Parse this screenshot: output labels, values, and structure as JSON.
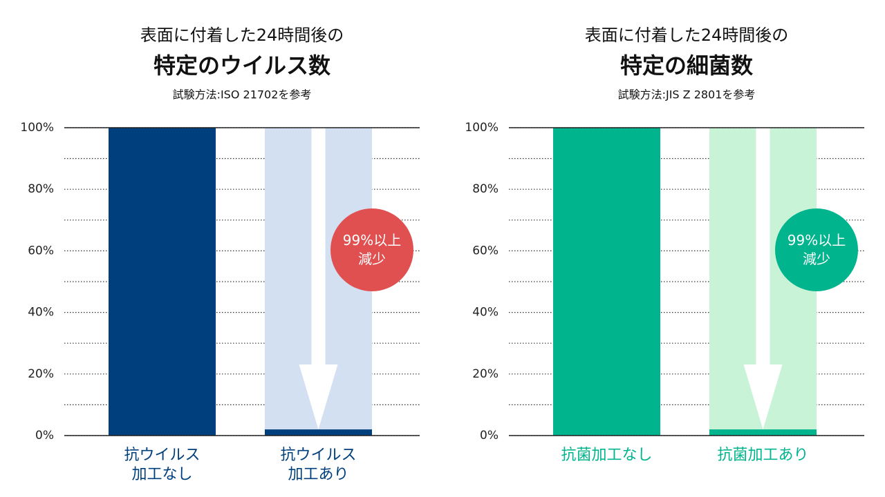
{
  "chart_data": [
    {
      "type": "bar",
      "title": "表面に付着した24時間後の",
      "subtitle": "特定のウイルス数",
      "note": "試験方法:ISO 21702を参考",
      "categories": [
        "抗ウイルス加工なし",
        "抗ウイルス加工あり"
      ],
      "values": [
        100,
        2
      ],
      "colors": [
        "#003f7d",
        "#003f7d"
      ],
      "background_color": "#d3e0f2",
      "label_color": "#003f7d",
      "ylim": [
        0,
        100
      ],
      "yticks": [
        {
          "value": 0,
          "label": "0%"
        },
        {
          "value": 20,
          "label": "20%"
        },
        {
          "value": 40,
          "label": "40%"
        },
        {
          "value": 60,
          "label": "60%"
        },
        {
          "value": 80,
          "label": "80%"
        },
        {
          "value": 100,
          "label": "100%"
        }
      ],
      "minor_yticks": [
        10,
        30,
        50,
        70,
        90
      ],
      "annotation": {
        "text": "99%以上減少",
        "color": "#e05050"
      }
    },
    {
      "type": "bar",
      "title": "表面に付着した24時間後の",
      "subtitle": "特定の細菌数",
      "note": "試験方法:JIS Z 2801を参考",
      "categories": [
        "抗菌加工なし",
        "抗菌加工あり"
      ],
      "values": [
        100,
        2
      ],
      "colors": [
        "#00b48e",
        "#00b48e"
      ],
      "background_color": "#c9f3d6",
      "label_color": "#00b48e",
      "ylim": [
        0,
        100
      ],
      "yticks": [
        {
          "value": 0,
          "label": "0%"
        },
        {
          "value": 20,
          "label": "20%"
        },
        {
          "value": 40,
          "label": "40%"
        },
        {
          "value": 60,
          "label": "60%"
        },
        {
          "value": 80,
          "label": "80%"
        },
        {
          "value": 100,
          "label": "100%"
        }
      ],
      "minor_yticks": [
        10,
        30,
        50,
        70,
        90
      ],
      "annotation": {
        "text": "99%以上減少",
        "color": "#00b48e"
      }
    }
  ]
}
